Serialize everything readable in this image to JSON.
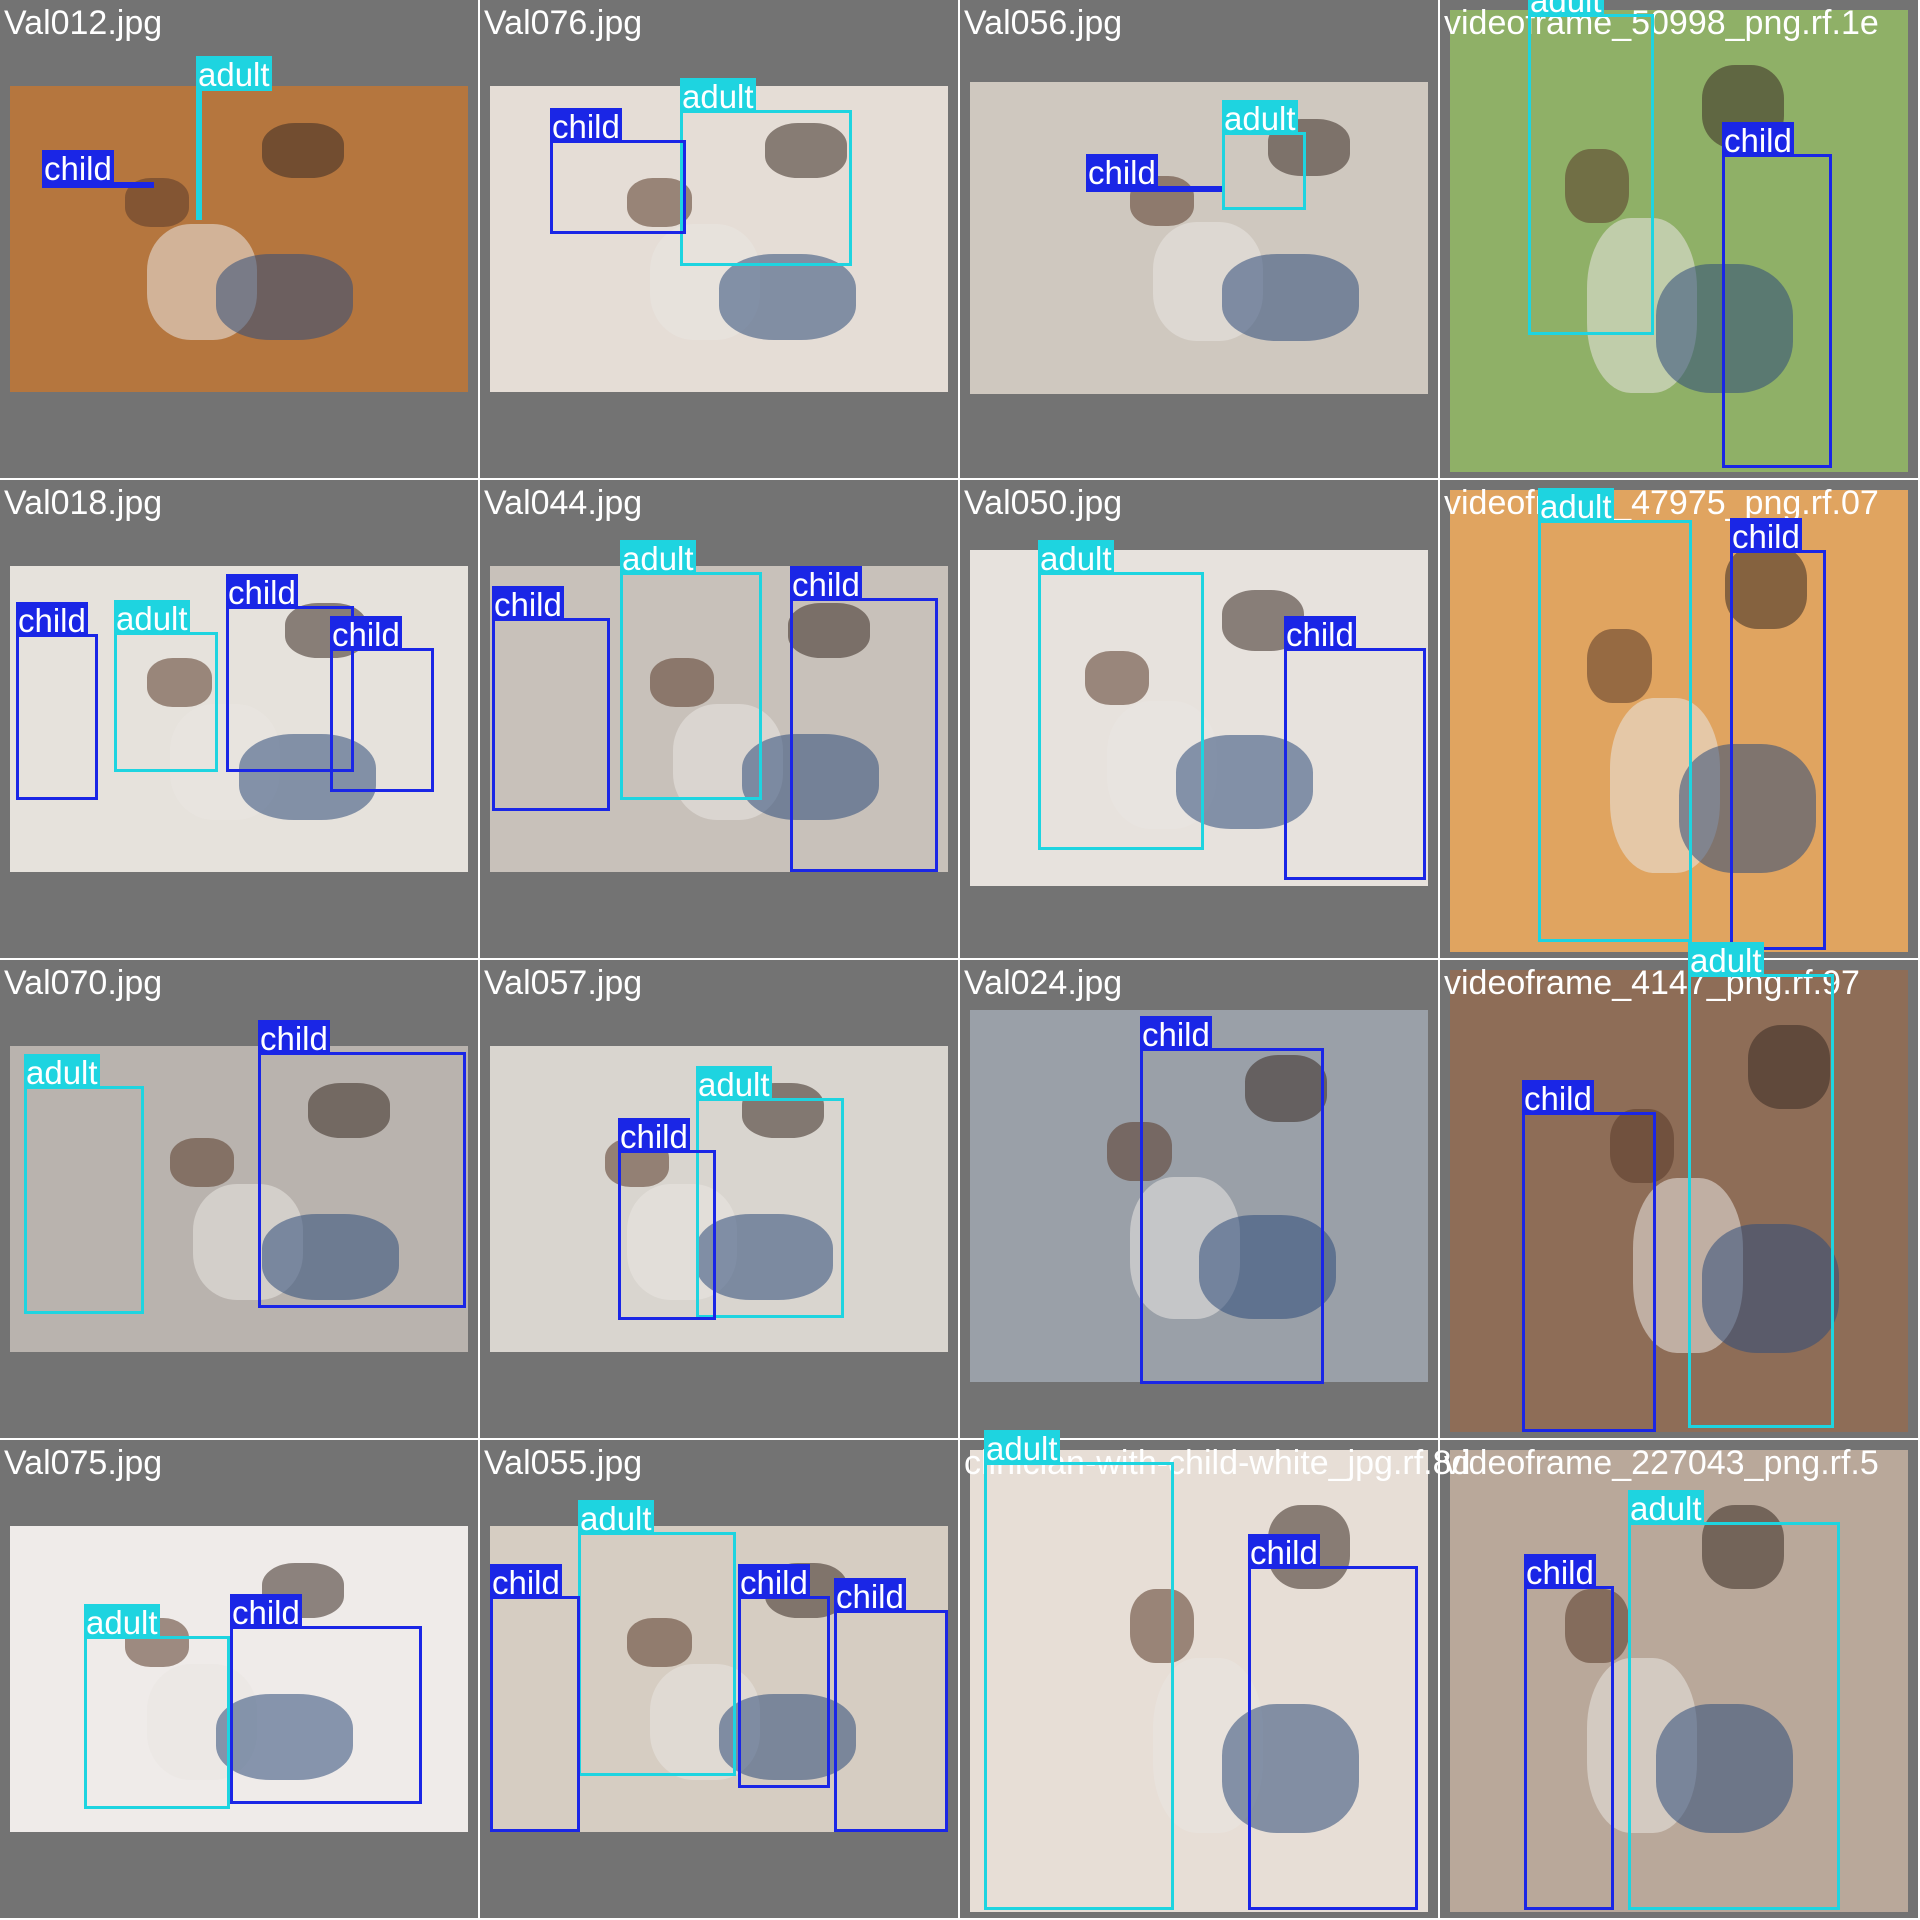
{
  "classes": {
    "adult": {
      "label": "adult",
      "color": "#1ed4e0"
    },
    "child": {
      "label": "child",
      "color": "#1a26e6"
    }
  },
  "tiles": [
    {
      "filename": "Val012.jpg",
      "photo_tone": "#b5763e",
      "detections": [
        {
          "cls": "adult"
        },
        {
          "cls": "child"
        }
      ]
    },
    {
      "filename": "Val076.jpg",
      "photo_tone": "#e5ddd6",
      "detections": [
        {
          "cls": "adult"
        },
        {
          "cls": "child"
        }
      ]
    },
    {
      "filename": "Val056.jpg",
      "photo_tone": "#cfc8bf",
      "detections": [
        {
          "cls": "adult"
        },
        {
          "cls": "child"
        }
      ]
    },
    {
      "filename": "videoframe_50998_png.rf.1e",
      "photo_tone": "#8fb067",
      "detections": [
        {
          "cls": "adult"
        },
        {
          "cls": "child"
        }
      ]
    },
    {
      "filename": "Val018.jpg",
      "photo_tone": "#e6e2dc",
      "detections": [
        {
          "cls": "child"
        },
        {
          "cls": "child"
        },
        {
          "cls": "adult"
        },
        {
          "cls": "child"
        }
      ]
    },
    {
      "filename": "Val044.jpg",
      "photo_tone": "#c8c1ba",
      "detections": [
        {
          "cls": "adult"
        },
        {
          "cls": "child"
        },
        {
          "cls": "child"
        }
      ]
    },
    {
      "filename": "Val050.jpg",
      "photo_tone": "#e7e2dd",
      "detections": [
        {
          "cls": "adult"
        },
        {
          "cls": "child"
        }
      ]
    },
    {
      "filename": "videoframe_47975_png.rf.07",
      "photo_tone": "#e0a460",
      "detections": [
        {
          "cls": "adult"
        },
        {
          "cls": "child"
        }
      ]
    },
    {
      "filename": "Val070.jpg",
      "photo_tone": "#b9b3ae",
      "detections": [
        {
          "cls": "child"
        },
        {
          "cls": "adult"
        }
      ]
    },
    {
      "filename": "Val057.jpg",
      "photo_tone": "#d9d5cf",
      "detections": [
        {
          "cls": "adult"
        },
        {
          "cls": "child"
        }
      ]
    },
    {
      "filename": "Val024.jpg",
      "photo_tone": "#9aa0a8",
      "detections": [
        {
          "cls": "child"
        }
      ]
    },
    {
      "filename": "videoframe_4147_png.rf.97",
      "photo_tone": "#8e6d57",
      "detections": [
        {
          "cls": "adult"
        },
        {
          "cls": "child"
        }
      ]
    },
    {
      "filename": "Val075.jpg",
      "photo_tone": "#efebe9",
      "detections": [
        {
          "cls": "child"
        },
        {
          "cls": "adult"
        }
      ]
    },
    {
      "filename": "Val055.jpg",
      "photo_tone": "#d6cdc2",
      "detections": [
        {
          "cls": "adult"
        },
        {
          "cls": "child"
        },
        {
          "cls": "child"
        },
        {
          "cls": "child"
        }
      ]
    },
    {
      "filename": "clinician-with-child-white_jpg.rf.8d",
      "photo_tone": "#e7ded6",
      "detections": [
        {
          "cls": "adult"
        },
        {
          "cls": "child"
        }
      ]
    },
    {
      "filename": "videoframe_227043_png.rf.5",
      "photo_tone": "#b9a89a",
      "detections": [
        {
          "cls": "adult"
        },
        {
          "cls": "child"
        }
      ]
    }
  ]
}
